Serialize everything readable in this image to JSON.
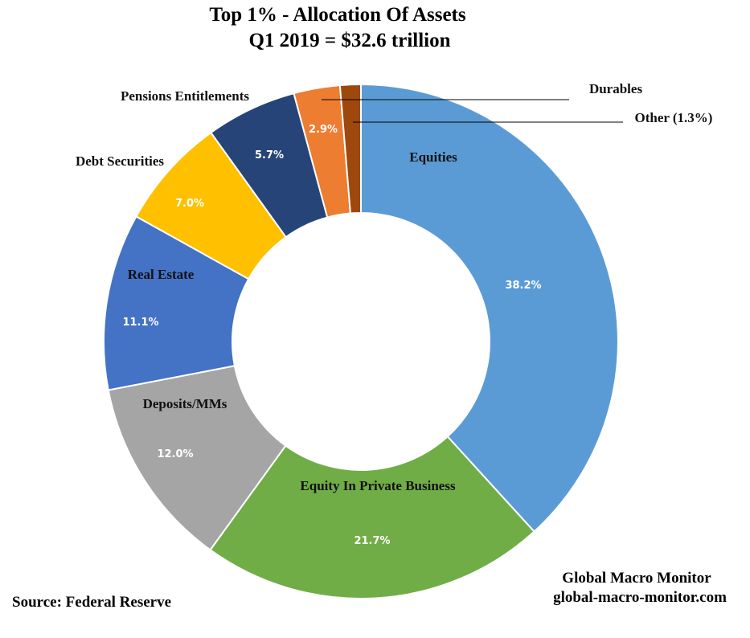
{
  "chart_data": {
    "type": "pie",
    "variant": "donut",
    "title": "Top 1% - Allocation Of Assets",
    "subtitle": "Q1 2019 = $32.6 trillion",
    "slices": [
      {
        "name": "Equities",
        "value": 38.2,
        "label": "38.2%",
        "color": "#5B9BD5"
      },
      {
        "name": "Equity In Private Business",
        "value": 21.7,
        "label": "21.7%",
        "color": "#70AD47"
      },
      {
        "name": "Deposits/MMs",
        "value": 12.0,
        "label": "12.0%",
        "color": "#A5A5A5"
      },
      {
        "name": "Real Estate",
        "value": 11.1,
        "label": "11.1%",
        "color": "#4472C4"
      },
      {
        "name": "Debt Securities",
        "value": 7.0,
        "label": "7.0%",
        "color": "#FFC000"
      },
      {
        "name": "Pensions Entitlements",
        "value": 5.7,
        "label": "5.7%",
        "color": "#264478"
      },
      {
        "name": "Durables",
        "value": 2.9,
        "label": "2.9%",
        "color": "#ED7D31"
      },
      {
        "name": "Other (1.3%)",
        "value": 1.3,
        "label": "",
        "color": "#9E480E"
      }
    ]
  },
  "footer": {
    "source": "Source: Federal Reserve",
    "brand_name": "Global Macro Monitor",
    "brand_url": "global-macro-monitor.com"
  }
}
